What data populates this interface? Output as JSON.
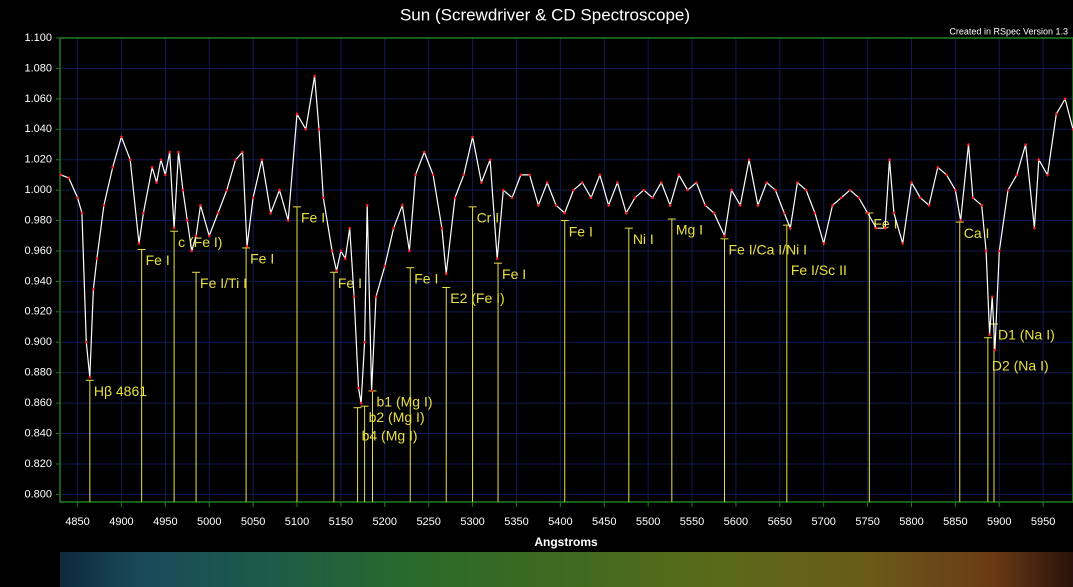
{
  "chart_data": {
    "type": "line",
    "title": "Sun (Screwdriver & CD Spectroscope)",
    "note": "Created in RSpec Version 1.3",
    "x_label": "Angstroms",
    "color": "#ffffff",
    "marker_color": "#ff2020",
    "annotation_color": "#e8e040",
    "grid": true,
    "xlim": [
      4830,
      5984
    ],
    "ylim": [
      0.795,
      1.1
    ],
    "xticks": [
      4850,
      4900,
      4950,
      5000,
      5050,
      5100,
      5150,
      5200,
      5250,
      5300,
      5350,
      5400,
      5450,
      5500,
      5550,
      5600,
      5650,
      5700,
      5750,
      5800,
      5850,
      5900,
      5950
    ],
    "yticks": [
      {
        "value": 0.8,
        "label": "0.800"
      },
      {
        "value": 0.82,
        "label": "0.820"
      },
      {
        "value": 0.84,
        "label": "0.840"
      },
      {
        "value": 0.86,
        "label": "0.860"
      },
      {
        "value": 0.88,
        "label": "0.880"
      },
      {
        "value": 0.9,
        "label": "0.900"
      },
      {
        "value": 0.92,
        "label": "0.920"
      },
      {
        "value": 0.94,
        "label": "0.940"
      },
      {
        "value": 0.96,
        "label": "0.960"
      },
      {
        "value": 0.98,
        "label": "0.980"
      },
      {
        "value": 1.0,
        "label": "1.000"
      },
      {
        "value": 1.02,
        "label": "1.020"
      },
      {
        "value": 1.04,
        "label": "1.040"
      },
      {
        "value": 1.06,
        "label": "1.060"
      },
      {
        "value": 1.08,
        "label": "1.080"
      },
      {
        "value": 1.1,
        "label": "1.100"
      }
    ],
    "x": [
      4831,
      4840,
      4850,
      4855,
      4860,
      4864,
      4868,
      4872,
      4880,
      4890,
      4900,
      4910,
      4920,
      4925,
      4935,
      4940,
      4945,
      4950,
      4955,
      4960,
      4965,
      4970,
      4975,
      4980,
      4985,
      4990,
      5000,
      5010,
      5020,
      5030,
      5038,
      5043,
      5050,
      5060,
      5070,
      5080,
      5090,
      5100,
      5110,
      5120,
      5125,
      5130,
      5140,
      5145,
      5150,
      5155,
      5160,
      5165,
      5170,
      5173,
      5177,
      5180,
      5185,
      5190,
      5200,
      5210,
      5220,
      5228,
      5235,
      5245,
      5255,
      5265,
      5270,
      5280,
      5290,
      5300,
      5310,
      5320,
      5328,
      5335,
      5345,
      5355,
      5365,
      5375,
      5385,
      5395,
      5405,
      5415,
      5425,
      5435,
      5445,
      5455,
      5465,
      5475,
      5485,
      5495,
      5505,
      5515,
      5525,
      5535,
      5545,
      5555,
      5565,
      5575,
      5587,
      5595,
      5605,
      5615,
      5625,
      5635,
      5645,
      5655,
      5662,
      5670,
      5680,
      5690,
      5700,
      5710,
      5720,
      5730,
      5740,
      5750,
      5760,
      5770,
      5775,
      5780,
      5790,
      5800,
      5810,
      5820,
      5830,
      5840,
      5850,
      5856,
      5865,
      5870,
      5880,
      5885,
      5889,
      5892,
      5895,
      5900,
      5910,
      5920,
      5930,
      5940,
      5945,
      5955,
      5965,
      5975,
      5984
    ],
    "values": [
      1.01,
      1.008,
      0.995,
      0.985,
      0.9,
      0.877,
      0.935,
      0.955,
      0.99,
      1.015,
      1.035,
      1.02,
      0.965,
      0.985,
      1.015,
      1.005,
      1.02,
      1.01,
      1.025,
      0.975,
      1.025,
      1.0,
      0.98,
      0.96,
      0.97,
      0.99,
      0.97,
      0.985,
      1.0,
      1.02,
      1.025,
      0.963,
      0.995,
      1.02,
      0.985,
      1.0,
      0.98,
      1.05,
      1.04,
      1.075,
      1.04,
      0.995,
      0.96,
      0.947,
      0.96,
      0.955,
      0.975,
      0.93,
      0.87,
      0.86,
      0.9,
      0.99,
      0.868,
      0.93,
      0.95,
      0.975,
      0.99,
      0.96,
      1.01,
      1.025,
      1.01,
      0.975,
      0.945,
      0.995,
      1.01,
      1.035,
      1.005,
      1.02,
      0.955,
      1.0,
      0.995,
      1.01,
      1.01,
      0.99,
      1.005,
      0.99,
      0.985,
      1.0,
      1.005,
      0.995,
      1.01,
      0.99,
      1.005,
      0.985,
      0.995,
      1.0,
      0.995,
      1.005,
      0.99,
      1.01,
      1.0,
      1.005,
      0.99,
      0.985,
      0.97,
      1.0,
      0.99,
      1.02,
      0.99,
      1.005,
      1.0,
      0.985,
      0.975,
      1.005,
      1.0,
      0.985,
      0.965,
      0.99,
      0.995,
      1.0,
      0.995,
      0.985,
      0.975,
      0.975,
      1.02,
      0.985,
      0.965,
      1.005,
      0.995,
      0.99,
      1.015,
      1.01,
      1.0,
      0.98,
      1.03,
      0.995,
      0.99,
      0.96,
      0.905,
      0.93,
      0.895,
      0.96,
      1.0,
      1.01,
      1.03,
      0.975,
      1.02,
      1.01,
      1.05,
      1.06,
      1.04
    ],
    "annotations": [
      {
        "label": "Hβ 4861",
        "x": 4864,
        "y": 0.875
      },
      {
        "label": "Fe I",
        "x": 4923,
        "y": 0.961
      },
      {
        "label": "c (Fe I)",
        "x": 4960,
        "y": 0.973
      },
      {
        "label": "Fe I/Ti I",
        "x": 4985,
        "y": 0.946
      },
      {
        "label": "Fe I",
        "x": 5042,
        "y": 0.962
      },
      {
        "label": "Fe I",
        "x": 5100,
        "y": 0.989
      },
      {
        "label": "Fe I",
        "x": 5142,
        "y": 0.946
      },
      {
        "label": "b1 (Mg I)",
        "x": 5186,
        "y": 0.868
      },
      {
        "label": "b2 (Mg I)",
        "x": 5177,
        "y": 0.858
      },
      {
        "label": "b4 (Mg I)",
        "x": 5169,
        "y": 0.857
      },
      {
        "label": "Fe I",
        "x": 5229,
        "y": 0.949
      },
      {
        "label": "E2 (Fe I)",
        "x": 5270,
        "y": 0.936
      },
      {
        "label": "Cr I",
        "x": 5300,
        "y": 0.989
      },
      {
        "label": "Fe I",
        "x": 5329,
        "y": 0.952
      },
      {
        "label": "Fe I",
        "x": 5405,
        "y": 0.98
      },
      {
        "label": "Ni I",
        "x": 5478,
        "y": 0.975
      },
      {
        "label": "Mg I",
        "x": 5527,
        "y": 0.981
      },
      {
        "label": "Fe I/Ca I/Ni I",
        "x": 5587,
        "y": 0.968
      },
      {
        "label": "Fe I/Sc II",
        "x": 5658,
        "y": 0.977
      },
      {
        "label": "Fe I",
        "x": 5752,
        "y": 0.985
      },
      {
        "label": "Ca I",
        "x": 5855,
        "y": 0.979
      },
      {
        "label": "D1 (Na I)",
        "x": 5894,
        "y": 0.912
      },
      {
        "label": "D2 (Na I)",
        "x": 5887,
        "y": 0.903
      }
    ]
  }
}
